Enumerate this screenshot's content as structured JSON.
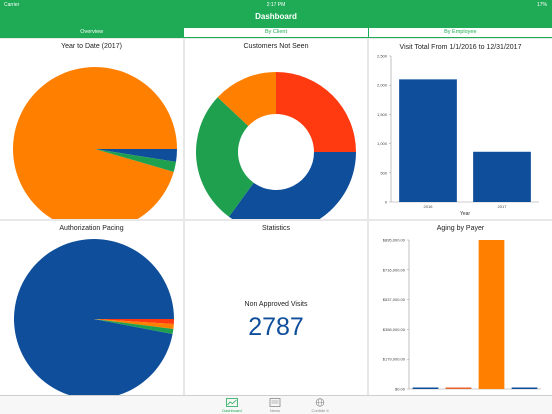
{
  "status": {
    "carrier": "Carrier",
    "time": "2:17 PM",
    "battery": "17%"
  },
  "header": {
    "title": "Dashboard"
  },
  "tabs": [
    {
      "label": "Overview",
      "active": true
    },
    {
      "label": "By Client",
      "active": false
    },
    {
      "label": "By Employee",
      "active": false
    }
  ],
  "cards": {
    "ytd": {
      "title": "Year to Date (2017)"
    },
    "customers": {
      "title": "Customers Not Seen"
    },
    "visits": {
      "title": "Visit Total From 1/1/2016 to 12/31/2017"
    },
    "auth": {
      "title": "Authorization Pacing"
    },
    "stats": {
      "title": "Statistics",
      "label": "Non Approved Visits",
      "value": "2787"
    },
    "aging": {
      "title": "Aging by Payer"
    }
  },
  "tabbar": [
    {
      "label": "Dashboard",
      "icon": "chart-icon",
      "active": true
    },
    {
      "label": "News",
      "icon": "news-icon",
      "active": false
    },
    {
      "label": "Confide It",
      "icon": "globe-icon",
      "active": false
    }
  ],
  "colors": {
    "green": "#1fab55",
    "orange": "#ff7f00",
    "blue": "#0f4e9a",
    "red": "#ff3a10",
    "pie_green": "#1fa04f"
  },
  "chart_data": [
    {
      "type": "pie",
      "title": "Year to Date (2017)",
      "slices": [
        {
          "color": "#ff7f00",
          "value": 95.5
        },
        {
          "color": "#0f4e9a",
          "value": 2.5
        },
        {
          "color": "#1fa04f",
          "value": 2.0
        }
      ]
    },
    {
      "type": "pie",
      "title": "Customers Not Seen",
      "donut": true,
      "slices": [
        {
          "color": "#ff3a10",
          "value": 25
        },
        {
          "color": "#0f4e9a",
          "value": 35
        },
        {
          "color": "#1fa04f",
          "value": 27
        },
        {
          "color": "#ff7f00",
          "value": 13
        }
      ]
    },
    {
      "type": "bar",
      "title": "Visit Total From 1/1/2016 to 12/31/2017",
      "categories": [
        "2016",
        "2017"
      ],
      "values": [
        2100,
        860
      ],
      "xlabel": "Year",
      "ylabel": "",
      "ylim": [
        0,
        2500
      ],
      "yticks": [
        "0",
        "500",
        "1,000",
        "1,500",
        "2,000",
        "2,500"
      ]
    },
    {
      "type": "pie",
      "title": "Authorization Pacing",
      "slices": [
        {
          "color": "#0f4e9a",
          "value": 97
        },
        {
          "color": "#ff3a10",
          "value": 1
        },
        {
          "color": "#ff7f00",
          "value": 1
        },
        {
          "color": "#1fa04f",
          "value": 1
        }
      ]
    },
    {
      "type": "bar",
      "title": "Aging by Payer",
      "categories": [
        "",
        "",
        "",
        ""
      ],
      "values": [
        8000,
        6000,
        895000,
        4000
      ],
      "colors": [
        "#0f4e9a",
        "#e8632a",
        "#ff7f00",
        "#0f4e9a"
      ],
      "ylim": [
        0,
        895000
      ],
      "yticks": [
        "$0.00",
        "$179,000.00",
        "$358,000.00",
        "$537,000.00",
        "$716,000.00",
        "$895,000.00"
      ]
    }
  ]
}
